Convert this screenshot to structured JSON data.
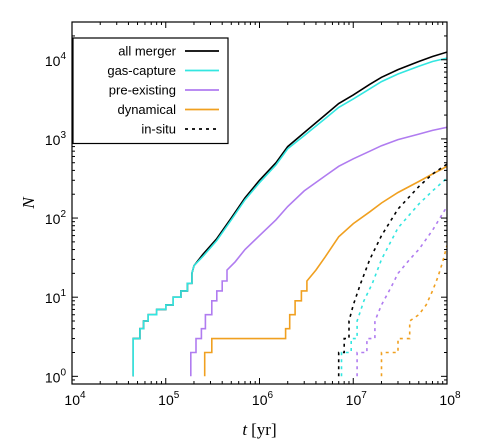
{
  "chart_data": {
    "type": "line",
    "title": "",
    "xlabel_var": "t",
    "xlabel_unit": "[yr]",
    "ylabel": "N",
    "xscale": "log",
    "yscale": "log",
    "xlim": [
      10000,
      100000000
    ],
    "ylim": [
      0.8,
      30000
    ],
    "x_ticks": [
      {
        "base": "10",
        "exp": "4",
        "value": 10000
      },
      {
        "base": "10",
        "exp": "5",
        "value": 100000
      },
      {
        "base": "10",
        "exp": "6",
        "value": 1000000
      },
      {
        "base": "10",
        "exp": "7",
        "value": 10000000
      },
      {
        "base": "10",
        "exp": "8",
        "value": 100000000
      }
    ],
    "y_ticks": [
      {
        "base": "10",
        "exp": "0",
        "value": 1
      },
      {
        "base": "10",
        "exp": "1",
        "value": 10
      },
      {
        "base": "10",
        "exp": "2",
        "value": 100
      },
      {
        "base": "10",
        "exp": "3",
        "value": 1000
      },
      {
        "base": "10",
        "exp": "4",
        "value": 10000
      }
    ],
    "grid": false,
    "legend_position": "top-left",
    "series": [
      {
        "name": "all merger",
        "color": "#000000",
        "dash": "solid",
        "step": true,
        "points": [
          [
            45000,
            1
          ],
          [
            45000,
            3
          ],
          [
            53000,
            3
          ],
          [
            53000,
            4
          ],
          [
            58000,
            4
          ],
          [
            58000,
            5
          ],
          [
            65000,
            5
          ],
          [
            65000,
            6
          ],
          [
            80000,
            6
          ],
          [
            80000,
            7
          ],
          [
            100000,
            7
          ],
          [
            100000,
            8
          ],
          [
            120000,
            8
          ],
          [
            120000,
            10
          ],
          [
            145000,
            10
          ],
          [
            145000,
            12
          ],
          [
            170000,
            12
          ],
          [
            170000,
            15
          ],
          [
            190000,
            15
          ],
          [
            190000,
            20
          ],
          [
            200000,
            25
          ],
          [
            250000,
            35
          ],
          [
            350000,
            55
          ],
          [
            500000,
            100
          ],
          [
            700000,
            180
          ],
          [
            1000000,
            300
          ],
          [
            1500000,
            500
          ],
          [
            2000000,
            800
          ],
          [
            3000000,
            1200
          ],
          [
            5000000,
            2000
          ],
          [
            7000000,
            2800
          ],
          [
            10000000,
            3600
          ],
          [
            15000000,
            4900
          ],
          [
            20000000,
            6000
          ],
          [
            30000000,
            7500
          ],
          [
            50000000,
            9500
          ],
          [
            70000000,
            11000
          ],
          [
            100000000,
            12500
          ]
        ]
      },
      {
        "name": "gas-capture",
        "color": "#33e6e0",
        "dash": "solid",
        "step": true,
        "points": [
          [
            45000,
            1
          ],
          [
            45000,
            3
          ],
          [
            53000,
            3
          ],
          [
            53000,
            4
          ],
          [
            58000,
            4
          ],
          [
            58000,
            5
          ],
          [
            65000,
            5
          ],
          [
            65000,
            6
          ],
          [
            80000,
            6
          ],
          [
            80000,
            7
          ],
          [
            100000,
            7
          ],
          [
            100000,
            8
          ],
          [
            120000,
            8
          ],
          [
            120000,
            10
          ],
          [
            145000,
            10
          ],
          [
            145000,
            12
          ],
          [
            170000,
            12
          ],
          [
            170000,
            15
          ],
          [
            190000,
            15
          ],
          [
            190000,
            20
          ],
          [
            200000,
            25
          ],
          [
            250000,
            33
          ],
          [
            350000,
            52
          ],
          [
            500000,
            95
          ],
          [
            700000,
            170
          ],
          [
            1000000,
            280
          ],
          [
            1500000,
            470
          ],
          [
            2000000,
            750
          ],
          [
            3000000,
            1100
          ],
          [
            5000000,
            1800
          ],
          [
            7000000,
            2500
          ],
          [
            10000000,
            3200
          ],
          [
            15000000,
            4300
          ],
          [
            20000000,
            5300
          ],
          [
            30000000,
            6600
          ],
          [
            50000000,
            8300
          ],
          [
            70000000,
            9500
          ],
          [
            100000000,
            10500
          ]
        ]
      },
      {
        "name": "pre-existing",
        "color": "#b07cf0",
        "dash": "solid",
        "step": true,
        "points": [
          [
            185000,
            1
          ],
          [
            185000,
            2
          ],
          [
            210000,
            2
          ],
          [
            210000,
            3
          ],
          [
            240000,
            3
          ],
          [
            240000,
            4
          ],
          [
            265000,
            4
          ],
          [
            265000,
            6
          ],
          [
            310000,
            6
          ],
          [
            310000,
            9
          ],
          [
            350000,
            9
          ],
          [
            350000,
            12
          ],
          [
            400000,
            12
          ],
          [
            400000,
            16
          ],
          [
            450000,
            16
          ],
          [
            450000,
            22
          ],
          [
            550000,
            28
          ],
          [
            700000,
            40
          ],
          [
            1000000,
            60
          ],
          [
            1500000,
            95
          ],
          [
            2000000,
            140
          ],
          [
            3000000,
            220
          ],
          [
            5000000,
            340
          ],
          [
            7000000,
            450
          ],
          [
            10000000,
            560
          ],
          [
            15000000,
            700
          ],
          [
            20000000,
            820
          ],
          [
            30000000,
            980
          ],
          [
            50000000,
            1150
          ],
          [
            70000000,
            1280
          ],
          [
            100000000,
            1400
          ]
        ]
      },
      {
        "name": "dynamical",
        "color": "#f0a020",
        "dash": "solid",
        "step": true,
        "points": [
          [
            260000,
            1
          ],
          [
            260000,
            2
          ],
          [
            310000,
            2
          ],
          [
            310000,
            3
          ],
          [
            1900000,
            3
          ],
          [
            1900000,
            4
          ],
          [
            2100000,
            4
          ],
          [
            2100000,
            6
          ],
          [
            2400000,
            6
          ],
          [
            2400000,
            9
          ],
          [
            2800000,
            9
          ],
          [
            2800000,
            12
          ],
          [
            3200000,
            12
          ],
          [
            3200000,
            16
          ],
          [
            4000000,
            22
          ],
          [
            5000000,
            32
          ],
          [
            7000000,
            58
          ],
          [
            10000000,
            85
          ],
          [
            15000000,
            120
          ],
          [
            20000000,
            155
          ],
          [
            30000000,
            210
          ],
          [
            50000000,
            290
          ],
          [
            70000000,
            360
          ],
          [
            100000000,
            450
          ]
        ]
      },
      {
        "name": "in-situ",
        "color": "#000000",
        "dash": "dotted",
        "step": true,
        "points": [
          [
            7000000,
            1
          ],
          [
            7000000,
            2
          ],
          [
            8000000,
            2
          ],
          [
            8000000,
            3
          ],
          [
            9000000,
            3
          ],
          [
            9000000,
            5
          ],
          [
            10000000,
            8
          ],
          [
            12000000,
            15
          ],
          [
            15000000,
            30
          ],
          [
            20000000,
            60
          ],
          [
            30000000,
            130
          ],
          [
            50000000,
            250
          ],
          [
            70000000,
            360
          ],
          [
            100000000,
            480
          ]
        ]
      },
      {
        "name": "",
        "color": "#33e6e0",
        "dash": "dotted",
        "step": true,
        "points": [
          [
            7500000,
            1
          ],
          [
            7500000,
            2
          ],
          [
            9500000,
            2
          ],
          [
            9500000,
            3
          ],
          [
            11000000,
            3
          ],
          [
            11000000,
            5
          ],
          [
            13000000,
            9
          ],
          [
            16000000,
            15
          ],
          [
            20000000,
            30
          ],
          [
            30000000,
            75
          ],
          [
            50000000,
            150
          ],
          [
            70000000,
            220
          ],
          [
            100000000,
            320
          ]
        ]
      },
      {
        "name": "",
        "color": "#b07cf0",
        "dash": "dotted",
        "step": true,
        "points": [
          [
            11000000,
            1
          ],
          [
            11000000,
            2
          ],
          [
            14000000,
            2
          ],
          [
            14000000,
            3
          ],
          [
            17000000,
            3
          ],
          [
            17000000,
            5
          ],
          [
            20000000,
            8
          ],
          [
            25000000,
            13
          ],
          [
            30000000,
            20
          ],
          [
            40000000,
            30
          ],
          [
            50000000,
            40
          ],
          [
            70000000,
            70
          ],
          [
            100000000,
            140
          ]
        ]
      },
      {
        "name": "",
        "color": "#f0a020",
        "dash": "dotted",
        "step": true,
        "points": [
          [
            20000000,
            1
          ],
          [
            20000000,
            2
          ],
          [
            30000000,
            2
          ],
          [
            30000000,
            3
          ],
          [
            40000000,
            3
          ],
          [
            40000000,
            5
          ],
          [
            50000000,
            6
          ],
          [
            60000000,
            8
          ],
          [
            70000000,
            12
          ],
          [
            80000000,
            18
          ],
          [
            90000000,
            28
          ],
          [
            100000000,
            45
          ]
        ]
      }
    ]
  }
}
